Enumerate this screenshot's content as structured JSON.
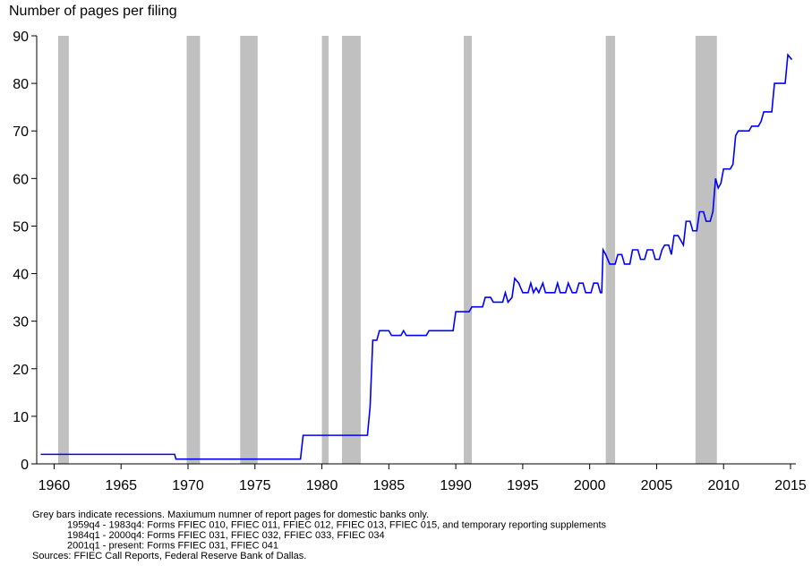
{
  "chart_data": {
    "type": "line",
    "y_axis_title": "Number of pages per filing",
    "xlim": [
      1958.7,
      2015.4
    ],
    "xticks": [
      1960,
      1965,
      1970,
      1975,
      1980,
      1985,
      1990,
      1995,
      2000,
      2005,
      2010,
      2015
    ],
    "ylim": [
      0,
      90
    ],
    "yticks": [
      0,
      10,
      20,
      30,
      40,
      50,
      60,
      70,
      80,
      90
    ],
    "recession_color": "#c0c0c0",
    "recessions": [
      [
        1960.3,
        1961.1
      ],
      [
        1969.9,
        1970.9
      ],
      [
        1973.9,
        1975.2
      ],
      [
        1980.0,
        1980.5
      ],
      [
        1981.5,
        1982.9
      ],
      [
        1990.6,
        1991.2
      ],
      [
        2001.2,
        2001.9
      ],
      [
        2007.9,
        2009.5
      ]
    ],
    "series": [
      {
        "color": "#0000ff",
        "x": [
          1959.0,
          1969.0,
          1969.1,
          1978.4,
          1978.6,
          1983.4,
          1983.6,
          1983.8,
          1984.1,
          1984.3,
          1985.0,
          1985.2,
          1985.9,
          1986.1,
          1986.3,
          1987.8,
          1988.0,
          1989.8,
          1990.0,
          1991.0,
          1991.2,
          1992.0,
          1992.2,
          1992.6,
          1992.8,
          1993.5,
          1993.7,
          1993.9,
          1994.2,
          1994.4,
          1994.7,
          1995.0,
          1995.4,
          1995.6,
          1995.8,
          1996.0,
          1996.2,
          1996.5,
          1996.7,
          1997.4,
          1997.6,
          1997.8,
          1998.2,
          1998.4,
          1998.7,
          1999.0,
          1999.2,
          1999.5,
          1999.7,
          2000.1,
          2000.3,
          2000.6,
          2000.8,
          2000.9,
          2001.0,
          2001.2,
          2001.5,
          2001.9,
          2002.1,
          2002.4,
          2002.6,
          2003.0,
          2003.2,
          2003.6,
          2003.8,
          2004.1,
          2004.3,
          2004.7,
          2004.9,
          2005.2,
          2005.4,
          2005.6,
          2005.9,
          2006.1,
          2006.3,
          2006.6,
          2006.8,
          2007.0,
          2007.2,
          2007.5,
          2007.7,
          2008.0,
          2008.2,
          2008.5,
          2008.7,
          2009.0,
          2009.2,
          2009.4,
          2009.6,
          2009.8,
          2010.0,
          2010.5,
          2010.7,
          2010.9,
          2011.1,
          2011.9,
          2012.1,
          2012.6,
          2012.8,
          2013.0,
          2013.6,
          2013.8,
          2014.6,
          2014.8,
          2015.1
        ],
        "values": [
          2,
          2,
          1,
          1,
          6,
          6,
          12,
          26,
          26,
          28,
          28,
          27,
          27,
          28,
          27,
          27,
          28,
          28,
          32,
          32,
          33,
          33,
          35,
          35,
          34,
          34,
          36,
          34,
          35,
          39,
          38,
          36,
          36,
          38,
          36,
          37,
          36,
          38,
          36,
          36,
          38,
          36,
          36,
          38,
          36,
          36,
          38,
          38,
          36,
          36,
          38,
          38,
          36,
          36,
          45,
          44,
          42,
          42,
          44,
          44,
          42,
          42,
          45,
          45,
          43,
          43,
          45,
          45,
          43,
          43,
          45,
          46,
          46,
          44,
          48,
          48,
          47,
          46,
          51,
          51,
          49,
          49,
          53,
          53,
          51,
          51,
          53,
          60,
          58,
          59,
          62,
          62,
          63,
          69,
          70,
          70,
          71,
          71,
          72,
          74,
          74,
          80,
          80,
          86,
          85
        ]
      }
    ],
    "notes": [
      "Grey bars indicate recessions. Maxiumum numner of report pages for domestic banks only.",
      "1959q4 - 1983q4: Forms FFIEC 010, FFIEC 011, FFIEC 012, FFIEC 013, FFIEC 015, and temporary reporting supplements",
      "1984q1 - 2000q4: Forms FFIEC 031, FFIEC 032, FFIEC 033, FFIEC 034",
      "2001q1 - present: Forms FFIEC 031, FFIEC 041",
      "Sources: FFIEC Call Reports, Federal Reserve Bank of Dallas."
    ]
  }
}
